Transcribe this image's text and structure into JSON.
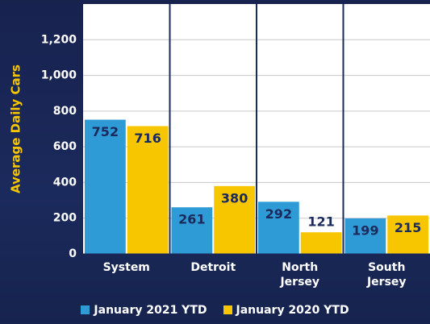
{
  "chart_data": {
    "type": "bar",
    "y_label": "Average Daily Cars",
    "categories": [
      "System",
      "Detroit",
      "North Jersey",
      "South Jersey"
    ],
    "series": [
      {
        "name": "January 2021 YTD",
        "color": "#2e9bd6",
        "values": [
          752,
          261,
          292,
          199
        ]
      },
      {
        "name": "January 2020 YTD",
        "color": "#f7c600",
        "values": [
          716,
          380,
          121,
          215
        ]
      }
    ],
    "ylim": [
      0,
      1400
    ],
    "yticks": [
      0,
      200,
      400,
      600,
      800,
      {
        "value": 1000,
        "label": "1,000"
      },
      {
        "value": 1200,
        "label": "1,200"
      }
    ],
    "grid": true
  }
}
